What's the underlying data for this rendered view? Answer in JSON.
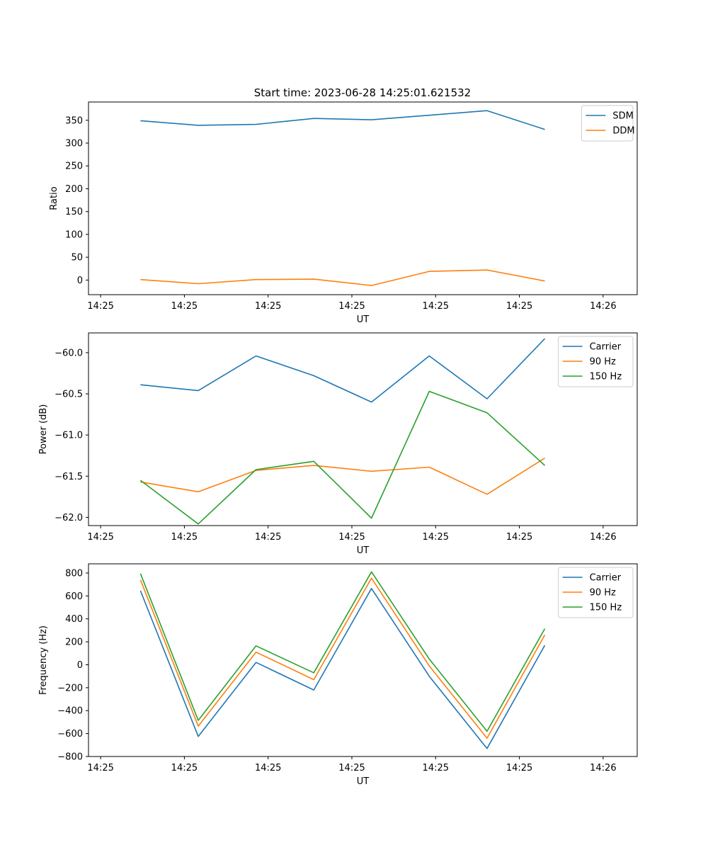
{
  "title": "Start time: 2023-06-28 14:25:01.621532",
  "chart_data": [
    {
      "type": "line",
      "title": "Start time: 2023-06-28 14:25:01.621532",
      "xlabel": "UT",
      "ylabel": "Ratio",
      "x_ticks": [
        "14:25",
        "14:25",
        "14:25",
        "14:25",
        "14:25",
        "14:25",
        "14:26"
      ],
      "y_ticks": [
        "0",
        "50",
        "100",
        "150",
        "200",
        "250",
        "300",
        "350"
      ],
      "ylim": [
        -32,
        390
      ],
      "legend": "upper right",
      "grid": false,
      "series": [
        {
          "name": "SDM",
          "color": "#1f77b4",
          "values": [
            349,
            339,
            341,
            354,
            351,
            361,
            371,
            330
          ]
        },
        {
          "name": "DDM",
          "color": "#ff7f0e",
          "values": [
            1,
            -8,
            1,
            2,
            -12,
            19,
            22,
            -2
          ]
        }
      ]
    },
    {
      "type": "line",
      "xlabel": "UT",
      "ylabel": "Power (dB)",
      "x_ticks": [
        "14:25",
        "14:25",
        "14:25",
        "14:25",
        "14:25",
        "14:25",
        "14:26"
      ],
      "y_ticks": [
        "−62.0",
        "−61.5",
        "−61.0",
        "−60.5",
        "−60.0"
      ],
      "ylim": [
        -62.1,
        -59.76
      ],
      "legend": "upper right",
      "grid": false,
      "series": [
        {
          "name": "Carrier",
          "color": "#1f77b4",
          "values": [
            -60.39,
            -60.46,
            -60.04,
            -60.28,
            -60.6,
            -60.04,
            -60.56,
            -59.83
          ]
        },
        {
          "name": "90 Hz",
          "color": "#ff7f0e",
          "values": [
            -61.57,
            -61.69,
            -61.43,
            -61.37,
            -61.44,
            -61.39,
            -61.72,
            -61.28
          ]
        },
        {
          "name": "150 Hz",
          "color": "#2ca02c",
          "values": [
            -61.55,
            -62.08,
            -61.42,
            -61.32,
            -62.01,
            -60.47,
            -60.73,
            -61.37
          ]
        }
      ]
    },
    {
      "type": "line",
      "xlabel": "UT",
      "ylabel": "Frequency (Hz)",
      "x_ticks": [
        "14:25",
        "14:25",
        "14:25",
        "14:25",
        "14:25",
        "14:25",
        "14:26"
      ],
      "y_ticks": [
        "−800",
        "−600",
        "−400",
        "−200",
        "0",
        "200",
        "400",
        "600",
        "800"
      ],
      "ylim": [
        -800,
        880
      ],
      "legend": "upper right",
      "grid": false,
      "series": [
        {
          "name": "Carrier",
          "color": "#1f77b4",
          "values": [
            645,
            -625,
            20,
            -220,
            665,
            -100,
            -730,
            170
          ]
        },
        {
          "name": "90 Hz",
          "color": "#ff7f0e",
          "values": [
            740,
            -535,
            110,
            -130,
            755,
            -10,
            -640,
            260
          ]
        },
        {
          "name": "150 Hz",
          "color": "#2ca02c",
          "values": [
            795,
            -485,
            165,
            -70,
            810,
            50,
            -580,
            315
          ]
        }
      ]
    }
  ]
}
